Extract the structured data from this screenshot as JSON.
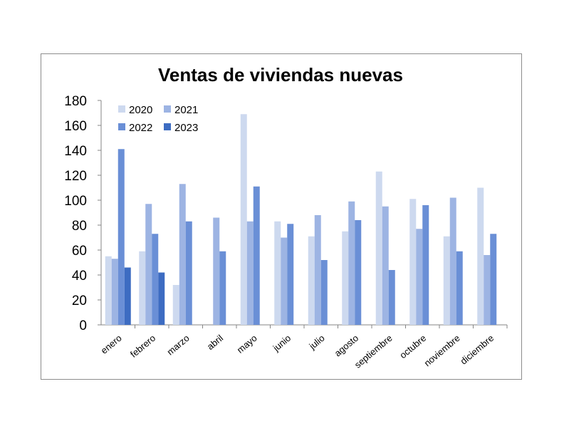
{
  "chart_data": {
    "type": "bar",
    "title": "Ventas de viviendas nuevas",
    "xlabel": "",
    "ylabel": "",
    "ylim": [
      0,
      180
    ],
    "yticks": [
      0,
      20,
      40,
      60,
      80,
      100,
      120,
      140,
      160,
      180
    ],
    "grid": false,
    "legend_position": "top-left",
    "categories": [
      "enero",
      "febrero",
      "marzo",
      "abril",
      "mayo",
      "junio",
      "julio",
      "agosto",
      "septiembre",
      "octubre",
      "noviembre",
      "diciembre"
    ],
    "series": [
      {
        "name": "2020",
        "color": "#cdd9ef",
        "values": [
          55,
          59,
          32,
          null,
          169,
          83,
          71,
          75,
          123,
          101,
          71,
          110
        ]
      },
      {
        "name": "2021",
        "color": "#9db4e3",
        "values": [
          53,
          97,
          113,
          86,
          83,
          70,
          88,
          99,
          95,
          77,
          102,
          56
        ]
      },
      {
        "name": "2022",
        "color": "#6a8fd6",
        "values": [
          141,
          73,
          83,
          59,
          111,
          81,
          52,
          84,
          44,
          96,
          59,
          73
        ]
      },
      {
        "name": "2023",
        "color": "#3d6cc2",
        "values": [
          46,
          42,
          null,
          null,
          null,
          null,
          null,
          null,
          null,
          null,
          null,
          null
        ]
      }
    ]
  }
}
